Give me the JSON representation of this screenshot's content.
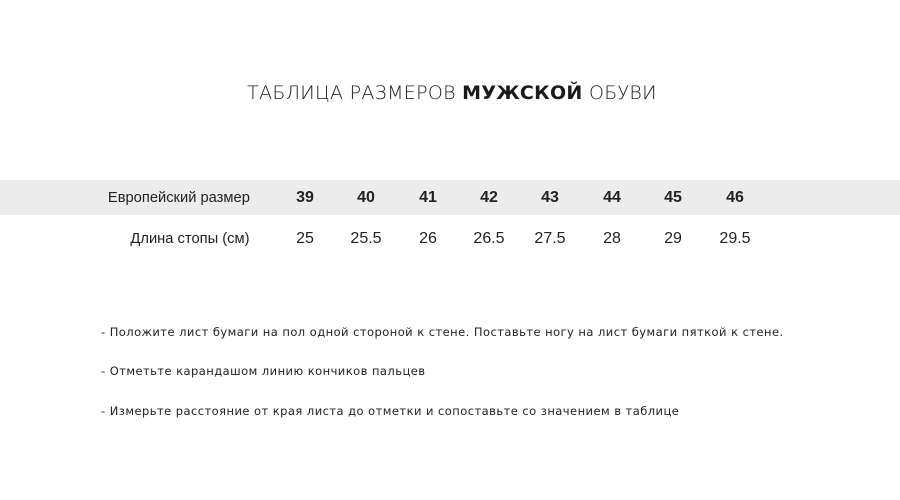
{
  "title": {
    "prefix": "ТАБЛИЦА РАЗМЕРОВ",
    "bold": "МУЖСКОЙ",
    "suffix": "ОБУВИ"
  },
  "table": {
    "rows": [
      {
        "label": "Европейский размер",
        "values": [
          "39",
          "40",
          "41",
          "42",
          "43",
          "44",
          "45",
          "46"
        ]
      },
      {
        "label": "Длина стопы (см)",
        "values": [
          "25",
          "25.5",
          "26",
          "26.5",
          "27.5",
          "28",
          "29",
          "29.5"
        ]
      }
    ]
  },
  "colors": {
    "band": "#ececec",
    "text": "#222222"
  },
  "instructions": [
    "- Положите лист бумаги на пол одной стороной к стене. Поставьте ногу на лист бумаги пяткой к стене.",
    "- Отметьте карандашом линию кончиков пальцев",
    "- Измерьте расстояние от края листа до отметки и сопоставьте со значением в таблице"
  ]
}
